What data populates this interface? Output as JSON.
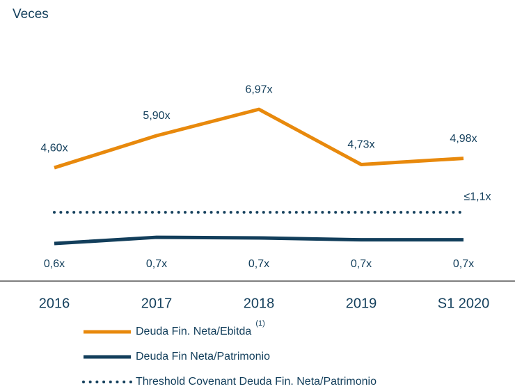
{
  "chart_data": {
    "type": "line",
    "title": "Veces",
    "categories": [
      "2016",
      "2017",
      "2018",
      "2019",
      "S1 2020"
    ],
    "series": [
      {
        "name": "Deuda Fin. Neta/Ebitda",
        "note": "(1)",
        "color": "#e8890c",
        "axis": "y",
        "values": [
          4.6,
          5.9,
          6.97,
          4.73,
          4.98
        ],
        "value_labels": [
          "4,60x",
          "5,90x",
          "6,97x",
          "4,73x",
          "4,98x"
        ]
      },
      {
        "name": "Deuda Fin Neta/Patrimonio",
        "color": "#123e5b",
        "axis": "y2",
        "values": [
          0.6,
          0.7,
          0.69,
          0.66,
          0.66
        ],
        "value_labels": [
          "0,6x",
          "0,7x",
          "0,7x",
          "0,7x",
          "0,7x"
        ]
      }
    ],
    "threshold": {
      "name": "Threshold Covenant Deuda Fin. Neta/Patrimonio",
      "value": 1.1,
      "label": "≤1,1x",
      "axis": "y2",
      "color": "#123e5b",
      "style": "dotted"
    },
    "ylim": [
      0,
      8.3
    ],
    "y2lim": [
      0,
      3.27
    ]
  }
}
